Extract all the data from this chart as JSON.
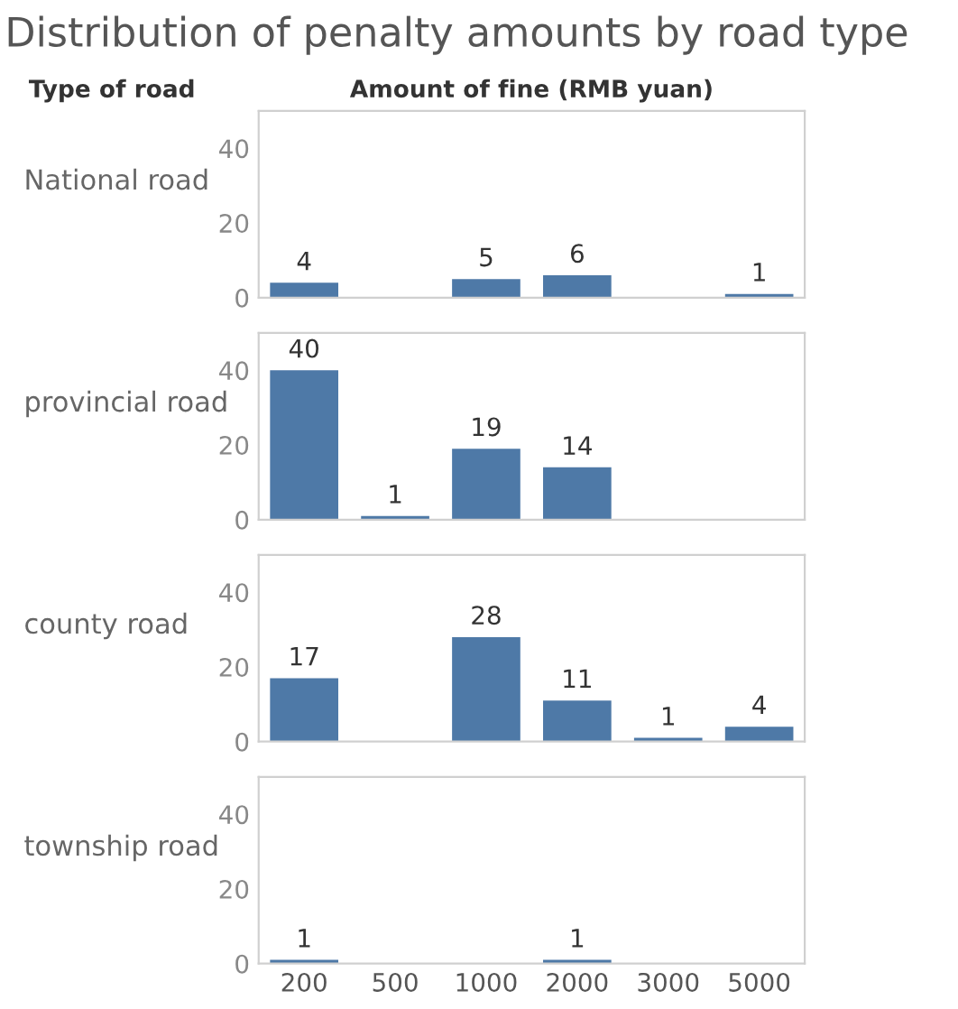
{
  "chart_data": [
    {
      "type": "bar",
      "title": "Distribution of penalty amounts by road type",
      "annotations": [
        "Type of road",
        "Amount of fine (RMB yuan)"
      ],
      "ylabel": "National road",
      "categories": [
        "200",
        "500",
        "1000",
        "2000",
        "3000",
        "5000"
      ],
      "values": [
        4,
        null,
        5,
        6,
        null,
        1
      ],
      "color": "#4e79a7",
      "ylim": [
        0,
        50
      ],
      "yticks": [
        0,
        20,
        40
      ],
      "data_labels": true,
      "tick_labels": "y",
      "grid": false
    },
    {
      "type": "bar",
      "ylabel": "provincial road",
      "categories": [
        "200",
        "500",
        "1000",
        "2000",
        "3000",
        "5000"
      ],
      "values": [
        40,
        1,
        19,
        14,
        null,
        null
      ],
      "color": "#4e79a7",
      "ylim": [
        0,
        50
      ],
      "yticks": [
        0,
        20,
        40
      ],
      "data_labels": true,
      "tick_labels": "y",
      "grid": false
    },
    {
      "type": "bar",
      "ylabel": "county road",
      "categories": [
        "200",
        "500",
        "1000",
        "2000",
        "3000",
        "5000"
      ],
      "values": [
        17,
        null,
        28,
        11,
        1,
        4
      ],
      "color": "#4e79a7",
      "ylim": [
        0,
        50
      ],
      "yticks": [
        0,
        20,
        40
      ],
      "data_labels": true,
      "tick_labels": "y",
      "grid": false
    },
    {
      "type": "bar",
      "ylabel": "township road",
      "categories": [
        "200",
        "500",
        "1000",
        "2000",
        "3000",
        "5000"
      ],
      "values": [
        1,
        null,
        null,
        1,
        null,
        null
      ],
      "color": "#4e79a7",
      "ylim": [
        0,
        50
      ],
      "yticks": [
        0,
        20,
        40
      ],
      "data_labels": true,
      "grid": false
    }
  ]
}
